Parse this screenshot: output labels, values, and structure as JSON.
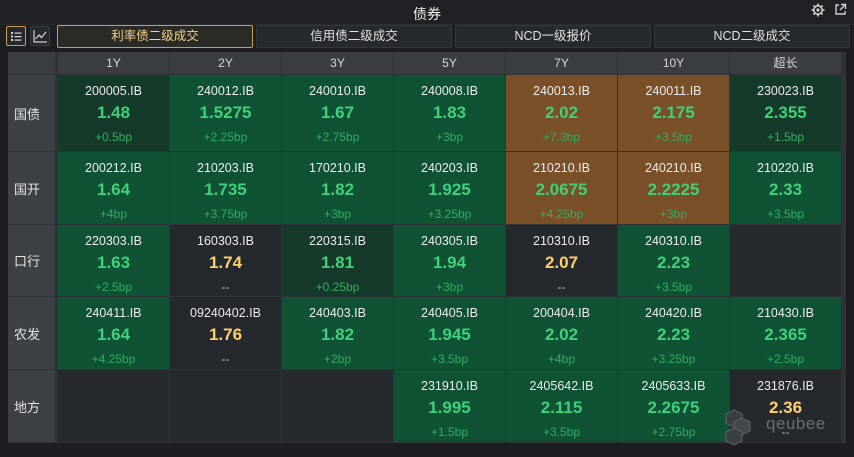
{
  "window": {
    "title": "债券"
  },
  "tabs": [
    {
      "label": "利率债二级成交",
      "active": true
    },
    {
      "label": "信用债二级成交",
      "active": false
    },
    {
      "label": "NCD一级报价",
      "active": false
    },
    {
      "label": "NCD二级成交",
      "active": false
    }
  ],
  "columns": [
    "1Y",
    "2Y",
    "3Y",
    "5Y",
    "7Y",
    "10Y",
    "超长"
  ],
  "rows": [
    {
      "label": "国债",
      "cells": [
        {
          "code": "200005.IB",
          "yield": "1.48",
          "change": "+0.5bp",
          "tone": "green-1"
        },
        {
          "code": "240012.IB",
          "yield": "1.5275",
          "change": "+2.25bp",
          "tone": "green-2"
        },
        {
          "code": "240010.IB",
          "yield": "1.67",
          "change": "+2.75bp",
          "tone": "green-2"
        },
        {
          "code": "240008.IB",
          "yield": "1.83",
          "change": "+3bp",
          "tone": "green-2"
        },
        {
          "code": "240013.IB",
          "yield": "2.02",
          "change": "+7.3bp",
          "tone": "brown"
        },
        {
          "code": "240011.IB",
          "yield": "2.175",
          "change": "+3.5bp",
          "tone": "brown"
        },
        {
          "code": "230023.IB",
          "yield": "2.355",
          "change": "+1.5bp",
          "tone": "green-1"
        }
      ]
    },
    {
      "label": "国开",
      "cells": [
        {
          "code": "200212.IB",
          "yield": "1.64",
          "change": "+4bp",
          "tone": "green-2"
        },
        {
          "code": "210203.IB",
          "yield": "1.735",
          "change": "+3.75bp",
          "tone": "green-2"
        },
        {
          "code": "170210.IB",
          "yield": "1.82",
          "change": "+3bp",
          "tone": "green-2"
        },
        {
          "code": "240203.IB",
          "yield": "1.925",
          "change": "+3.25bp",
          "tone": "green-2"
        },
        {
          "code": "210210.IB",
          "yield": "2.0675",
          "change": "+4.25bp",
          "tone": "brown"
        },
        {
          "code": "240210.IB",
          "yield": "2.2225",
          "change": "+3bp",
          "tone": "brown"
        },
        {
          "code": "210220.IB",
          "yield": "2.33",
          "change": "+3.5bp",
          "tone": "green-2"
        }
      ]
    },
    {
      "label": "口行",
      "cells": [
        {
          "code": "220303.IB",
          "yield": "1.63",
          "change": "+2.5bp",
          "tone": "green-2"
        },
        {
          "code": "160303.IB",
          "yield": "1.74",
          "change": "--",
          "tone": "dark",
          "style": "orange"
        },
        {
          "code": "220315.IB",
          "yield": "1.81",
          "change": "+0.25bp",
          "tone": "green-1"
        },
        {
          "code": "240305.IB",
          "yield": "1.94",
          "change": "+3bp",
          "tone": "green-2"
        },
        {
          "code": "210310.IB",
          "yield": "2.07",
          "change": "--",
          "tone": "dark",
          "style": "orange"
        },
        {
          "code": "240310.IB",
          "yield": "2.23",
          "change": "+3.5bp",
          "tone": "green-2"
        },
        null
      ]
    },
    {
      "label": "农发",
      "cells": [
        {
          "code": "240411.IB",
          "yield": "1.64",
          "change": "+4.25bp",
          "tone": "green-2"
        },
        {
          "code": "09240402.IB",
          "yield": "1.76",
          "change": "--",
          "tone": "dark",
          "style": "orange"
        },
        {
          "code": "240403.IB",
          "yield": "1.82",
          "change": "+2bp",
          "tone": "green-2"
        },
        {
          "code": "240405.IB",
          "yield": "1.945",
          "change": "+3.5bp",
          "tone": "green-2"
        },
        {
          "code": "200404.IB",
          "yield": "2.02",
          "change": "+4bp",
          "tone": "green-2"
        },
        {
          "code": "240420.IB",
          "yield": "2.23",
          "change": "+3.25bp",
          "tone": "green-2"
        },
        {
          "code": "210430.IB",
          "yield": "2.365",
          "change": "+2.5bp",
          "tone": "green-2"
        }
      ]
    },
    {
      "label": "地方",
      "cells": [
        null,
        null,
        null,
        {
          "code": "231910.IB",
          "yield": "1.995",
          "change": "+1.5bp",
          "tone": "green-2"
        },
        {
          "code": "2405642.IB",
          "yield": "2.115",
          "change": "+3.5bp",
          "tone": "green-2"
        },
        {
          "code": "2405633.IB",
          "yield": "2.2675",
          "change": "+2.75bp",
          "tone": "green-2"
        },
        {
          "code": "231876.IB",
          "yield": "2.36",
          "change": "--",
          "tone": "dark",
          "style": "orange"
        }
      ]
    }
  ],
  "colors": {
    "green-1": "#163a2a",
    "green-2": "#0f5234",
    "brown": "#7a5029",
    "dark": "#25282c",
    "empty": "#26292d"
  },
  "icons": {
    "list_view": "list-icon",
    "chart_view": "line-chart-icon",
    "settings": "gear-icon",
    "popout": "external-link-icon"
  },
  "watermark": {
    "text": "qeubee"
  }
}
